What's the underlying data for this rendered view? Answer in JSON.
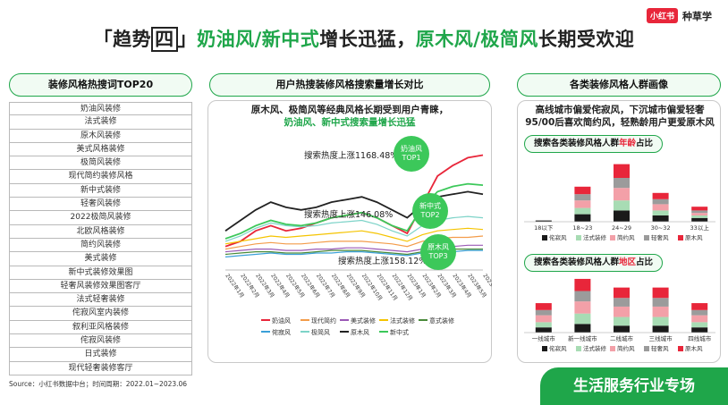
{
  "logo": {
    "badge": "小红书",
    "text": "种草学"
  },
  "title": {
    "bracket_open": "「",
    "prefix": "趋势",
    "box": "四",
    "bracket_close": "」",
    "green1": "奶油风/新中式",
    "black1": "增长迅猛，",
    "green2": "原木风/极简风",
    "black2": "长期受欢迎"
  },
  "panels": {
    "left_title": "装修风格热搜词TOP20",
    "mid_title": "用户热搜装修风格搜索量增长对比",
    "right_title": "各类装修风格人群画像"
  },
  "top20": [
    "奶油风装修",
    "法式装修",
    "原木风装修",
    "美式风格装修",
    "极简风装修",
    "现代简约装修风格",
    "新中式装修",
    "轻奢风装修",
    "2022极简风装修",
    "北欧风格装修",
    "简约风装修",
    "美式装修",
    "新中式装修效果图",
    "轻奢风装修效果图客厅",
    "法式轻奢装修",
    "侘寂风室内装修",
    "叙利亚风格装修",
    "侘寂风装修",
    "日式装修",
    "现代轻奢装修客厅"
  ],
  "mid": {
    "line1": "原木风、极简风等经典风格长期受到用户青睐，",
    "line2": "奶油风、新中式搜索量增长迅猛",
    "annotations": [
      {
        "text": "搜索热度上涨1168.48%"
      },
      {
        "text": "搜索热度上涨146.08%"
      },
      {
        "text": "搜索热度上涨158.12%"
      }
    ],
    "bubbles": [
      {
        "l1": "奶油风",
        "l2": "TOP1"
      },
      {
        "l1": "新中式",
        "l2": "TOP2"
      },
      {
        "l1": "原木风",
        "l2": "TOP3"
      }
    ]
  },
  "right": {
    "line1": "高线城市偏爱侘寂风，下沉城市偏爱轻奢",
    "line2": "95/00后喜欢简约风，轻熟龄用户更爱原木风",
    "sub1": {
      "a": "搜索各类装修风格人群",
      "b": "年龄",
      "c": "占比"
    },
    "sub2": {
      "a": "搜索各类装修风格人群",
      "b": "地区",
      "c": "占比"
    }
  },
  "source": "Source：小红书数据中台；时间周期：2022.01~2023.06",
  "banner": "生活服务行业专场",
  "colors": {
    "green": "#1fa64a",
    "red": "#e8263a",
    "pink": "#f3a0a8",
    "gray": "#9b9b9b",
    "lightgreen": "#a8dcb4",
    "black": "#1a1a1a"
  },
  "chart_data": [
    {
      "type": "line",
      "x": [
        "2022年1月",
        "2022年2月",
        "2022年3月",
        "2022年4月",
        "2022年5月",
        "2022年6月",
        "2022年7月",
        "2022年8月",
        "2022年9月",
        "2022年10月",
        "2022年11月",
        "2022年12月",
        "2023年1月",
        "2023年2月",
        "2023年3月",
        "2023年4月",
        "2023年5月",
        "2023年6月"
      ],
      "series": [
        {
          "name": "奶油风",
          "color": "#e8263a",
          "values": [
            18,
            22,
            30,
            34,
            30,
            32,
            36,
            40,
            42,
            44,
            40,
            34,
            28,
            50,
            72,
            80,
            86,
            88
          ]
        },
        {
          "name": "现代简约",
          "color": "#f39c4a",
          "values": [
            16,
            18,
            20,
            21,
            20,
            20,
            21,
            22,
            22,
            22,
            21,
            20,
            18,
            22,
            24,
            25,
            25,
            26
          ]
        },
        {
          "name": "美式装修",
          "color": "#9b59b6",
          "values": [
            14,
            15,
            16,
            16,
            15,
            15,
            16,
            16,
            17,
            17,
            16,
            15,
            14,
            16,
            18,
            18,
            19,
            19
          ]
        },
        {
          "name": "法式装修",
          "color": "#f5c400",
          "values": [
            20,
            22,
            24,
            26,
            25,
            26,
            27,
            28,
            29,
            30,
            28,
            25,
            22,
            27,
            30,
            31,
            32,
            31
          ]
        },
        {
          "name": "意式装修",
          "color": "#4a8a3a",
          "values": [
            12,
            13,
            14,
            14,
            13,
            13,
            14,
            15,
            15,
            15,
            14,
            13,
            12,
            14,
            15,
            16,
            16,
            16
          ]
        },
        {
          "name": "侘寂风",
          "color": "#3aa0d8",
          "values": [
            10,
            11,
            12,
            13,
            12,
            12,
            13,
            13,
            14,
            14,
            13,
            12,
            11,
            13,
            14,
            14,
            15,
            15
          ]
        },
        {
          "name": "极简风",
          "color": "#7dd3c8",
          "values": [
            22,
            26,
            32,
            36,
            34,
            33,
            34,
            36,
            37,
            38,
            35,
            30,
            26,
            34,
            38,
            40,
            41,
            40
          ]
        },
        {
          "name": "原木风",
          "color": "#222222",
          "values": [
            30,
            38,
            46,
            52,
            48,
            46,
            48,
            52,
            54,
            56,
            52,
            46,
            40,
            50,
            56,
            58,
            60,
            58
          ]
        },
        {
          "name": "新中式",
          "color": "#3cc85a",
          "values": [
            24,
            28,
            34,
            38,
            35,
            34,
            36,
            40,
            42,
            44,
            40,
            34,
            30,
            48,
            60,
            64,
            66,
            65
          ]
        }
      ]
    },
    {
      "type": "bar",
      "title": "搜索各类装修风格人群年龄占比",
      "categories": [
        "18以下",
        "18~23",
        "24~29",
        "30~32",
        "33以上"
      ],
      "series": [
        {
          "name": "侘寂风",
          "values": [
            1,
            6,
            9,
            5,
            3
          ]
        },
        {
          "name": "法式装修",
          "values": [
            0,
            5,
            8,
            4,
            2
          ]
        },
        {
          "name": "简约风",
          "values": [
            0,
            6,
            10,
            5,
            2
          ]
        },
        {
          "name": "轻奢风",
          "values": [
            0,
            5,
            8,
            4,
            2
          ]
        },
        {
          "name": "原木风",
          "values": [
            0,
            6,
            11,
            5,
            3
          ]
        }
      ]
    },
    {
      "type": "bar",
      "title": "搜索各类装修风格人群地区占比",
      "categories": [
        "一线城市",
        "新一线城市",
        "二线城市",
        "三线城市",
        "四线城市"
      ],
      "series": [
        {
          "name": "侘寂风",
          "values": [
            3,
            5,
            4,
            4,
            3
          ]
        },
        {
          "name": "法式装修",
          "values": [
            3,
            6,
            5,
            5,
            3
          ]
        },
        {
          "name": "简约风",
          "values": [
            4,
            7,
            6,
            6,
            4
          ]
        },
        {
          "name": "轻奢风",
          "values": [
            3,
            6,
            5,
            5,
            3
          ]
        },
        {
          "name": "原木风",
          "values": [
            4,
            7,
            6,
            6,
            4
          ]
        }
      ]
    }
  ]
}
